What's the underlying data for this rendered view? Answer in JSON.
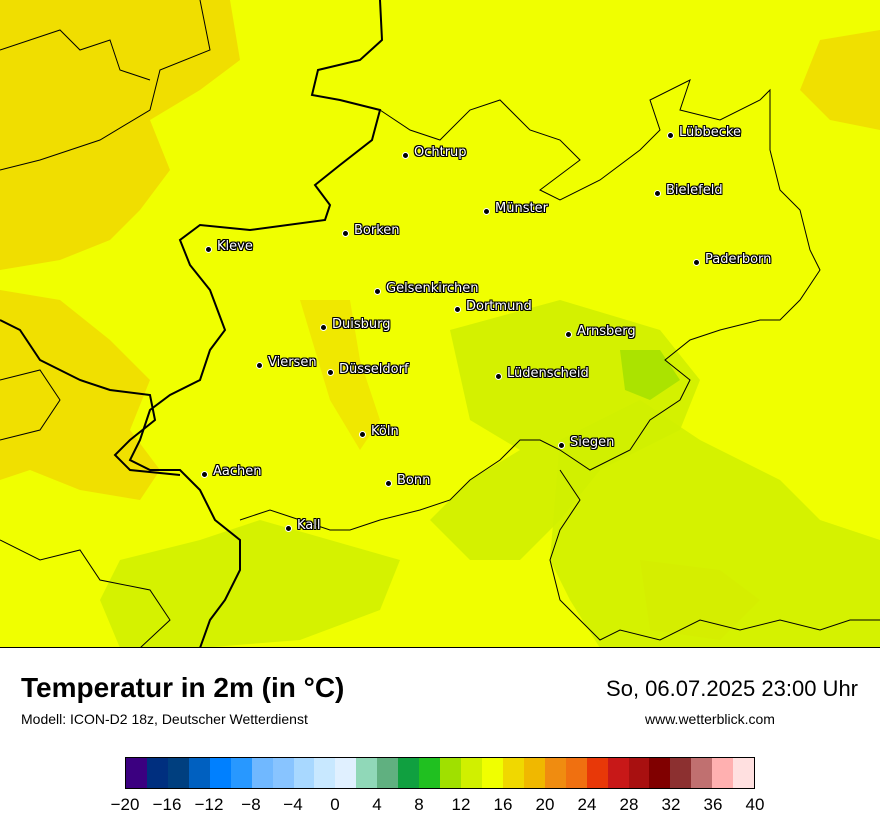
{
  "map": {
    "cities": [
      {
        "name": "Lübbecke"
      },
      {
        "name": "Ochtrup"
      },
      {
        "name": "Bielefeld"
      },
      {
        "name": "Münster"
      },
      {
        "name": "Borken"
      },
      {
        "name": "Kleve"
      },
      {
        "name": "Paderborn"
      },
      {
        "name": "Gelsenkirchen"
      },
      {
        "name": "Dortmund"
      },
      {
        "name": "Duisburg"
      },
      {
        "name": "Arnsberg"
      },
      {
        "name": "Viersen"
      },
      {
        "name": "Düsseldorf"
      },
      {
        "name": "Lüdenscheid"
      },
      {
        "name": "Köln"
      },
      {
        "name": "Siegen"
      },
      {
        "name": "Aachen"
      },
      {
        "name": "Bonn"
      },
      {
        "name": "Kall"
      }
    ]
  },
  "footer": {
    "title": "Temperatur in 2m (in °C)",
    "model": "Modell: ICON-D2 18z, Deutscher Wetterdienst",
    "datetime": "So, 06.07.2025 23:00 Uhr",
    "website": "www.wetterblick.com"
  },
  "legend": {
    "colors": [
      "#3b0080",
      "#002f7f",
      "#003f7f",
      "#0060c0",
      "#0080ff",
      "#2898ff",
      "#70b8ff",
      "#88c4ff",
      "#a8d8ff",
      "#c8e8ff",
      "#e0f0ff",
      "#90d8b8",
      "#60b080",
      "#10a040",
      "#20c020",
      "#a0e000",
      "#d0f000",
      "#f0ff00",
      "#f0d800",
      "#f0b800",
      "#f08c10",
      "#f07010",
      "#e83808",
      "#c81818",
      "#a81010",
      "#800000",
      "#8c3030",
      "#c07070",
      "#ffb0b0",
      "#ffe0e0"
    ],
    "ticks": [
      "−20",
      "−16",
      "−12",
      "−8",
      "−4",
      "0",
      "4",
      "8",
      "12",
      "16",
      "20",
      "24",
      "28",
      "32",
      "36",
      "40"
    ]
  }
}
